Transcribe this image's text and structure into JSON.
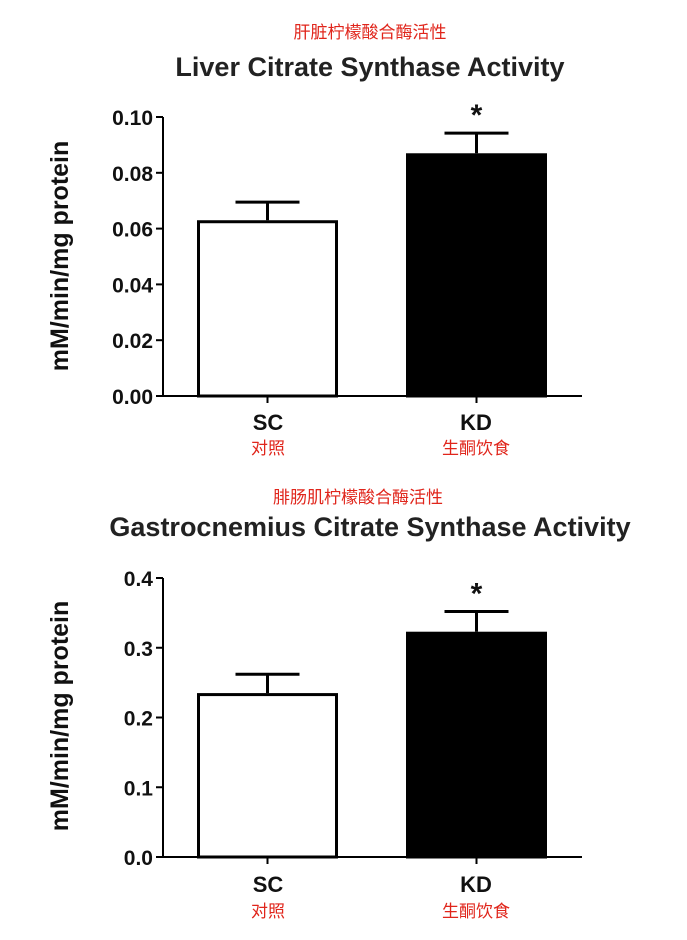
{
  "chart_data": [
    {
      "type": "bar",
      "annotation_cn": "肝脏柠檬酸合酶活性",
      "title": "Liver Citrate Synthase Activity",
      "ylabel": "mM/min/mg protein",
      "ylim": [
        0,
        0.1
      ],
      "yticks": [
        "0.00",
        "0.02",
        "0.04",
        "0.06",
        "0.08",
        "0.10"
      ],
      "categories": [
        "SC",
        "KD"
      ],
      "categories_cn": [
        "对照",
        "生酮饮食"
      ],
      "values": [
        0.063,
        0.087
      ],
      "errors": [
        0.0065,
        0.0072
      ],
      "bar_colors": [
        "#ffffff",
        "#000000"
      ],
      "significance": [
        "",
        "*"
      ]
    },
    {
      "type": "bar",
      "annotation_cn": "腓肠肌柠檬酸合酶活性",
      "title": "Gastrocnemius Citrate Synthase Activity",
      "ylabel": "mM/min/mg protein",
      "ylim": [
        0,
        0.4
      ],
      "yticks": [
        "0.0",
        "0.1",
        "0.2",
        "0.3",
        "0.4"
      ],
      "categories": [
        "SC",
        "KD"
      ],
      "categories_cn": [
        "对照",
        "生酮饮食"
      ],
      "values": [
        0.235,
        0.323
      ],
      "errors": [
        0.027,
        0.029
      ],
      "bar_colors": [
        "#ffffff",
        "#000000"
      ],
      "significance": [
        "",
        "*"
      ]
    }
  ]
}
